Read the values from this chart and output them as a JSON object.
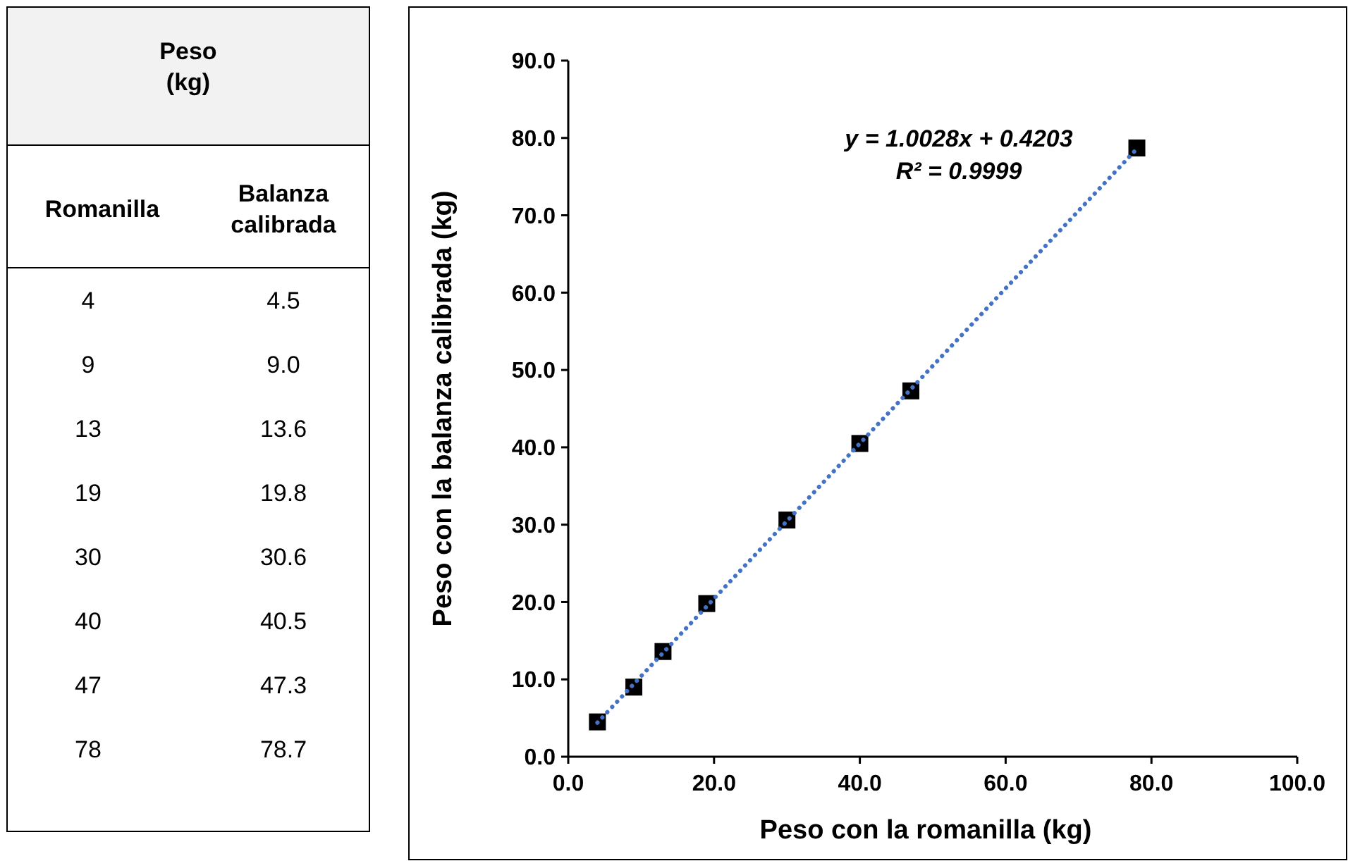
{
  "chart_data": [
    {
      "type": "other",
      "title": "Peso (kg)",
      "annotations": [
        "Romanilla",
        "Balanza calibrada",
        "4",
        "4.5",
        "9",
        "9.0",
        "13",
        "13.6",
        "19",
        "19.8",
        "30",
        "30.6",
        "40",
        "40.5",
        "47",
        "47.3",
        "78",
        "78.7"
      ]
    },
    {
      "type": "scatter",
      "xlabel": "Peso con la romanilla (kg)",
      "ylabel": "Peso con la balanza calibrada (kg)",
      "x": [
        4,
        9,
        13,
        19,
        30,
        40,
        47,
        78
      ],
      "series": [
        {
          "type": "scatter",
          "color": "#000000",
          "marker": "square",
          "values": [
            4.5,
            9.0,
            13.6,
            19.8,
            30.6,
            40.5,
            47.3,
            78.7
          ]
        },
        {
          "type": "line",
          "color": "#4472c4",
          "line_style": "dotted",
          "x": [
            4,
            78
          ],
          "values": [
            4.4,
            78.6
          ]
        }
      ],
      "xlim": [
        0,
        100
      ],
      "xticks": [
        {
          "value": 0,
          "label": "0.0"
        },
        {
          "value": 20,
          "label": "20.0"
        },
        {
          "value": 40,
          "label": "40.0"
        },
        {
          "value": 60,
          "label": "60.0"
        },
        {
          "value": 80,
          "label": "80.0"
        },
        {
          "value": 100,
          "label": "100.0"
        }
      ],
      "ylim": [
        0,
        90
      ],
      "yticks": [
        {
          "value": 0,
          "label": "0.0"
        },
        {
          "value": 10,
          "label": "10.0"
        },
        {
          "value": 20,
          "label": "20.0"
        },
        {
          "value": 30,
          "label": "30.0"
        },
        {
          "value": 40,
          "label": "40.0"
        },
        {
          "value": 50,
          "label": "50.0"
        },
        {
          "value": 60,
          "label": "60.0"
        },
        {
          "value": 70,
          "label": "70.0"
        },
        {
          "value": 80,
          "label": "80.0"
        },
        {
          "value": 90,
          "label": "90.0"
        }
      ],
      "annotations": [
        "y = 1.0028x + 0.4203",
        "R² = 0.9999"
      ],
      "grid": false
    }
  ]
}
